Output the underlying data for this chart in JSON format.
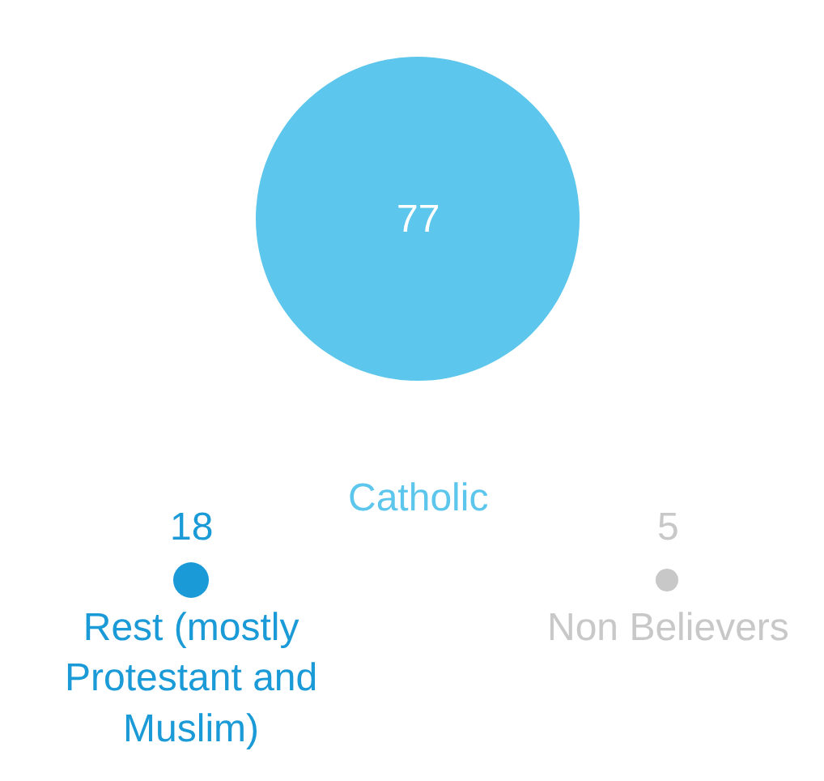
{
  "chart_data": {
    "type": "other",
    "categories": [
      "Catholic",
      "Rest (mostly Protestant and Muslim)",
      "Non Believers"
    ],
    "values": [
      77,
      18,
      5
    ],
    "data_labels": true,
    "colors": [
      "#5cc6ec",
      "#1a9ad6",
      "#c8c8c8"
    ]
  }
}
